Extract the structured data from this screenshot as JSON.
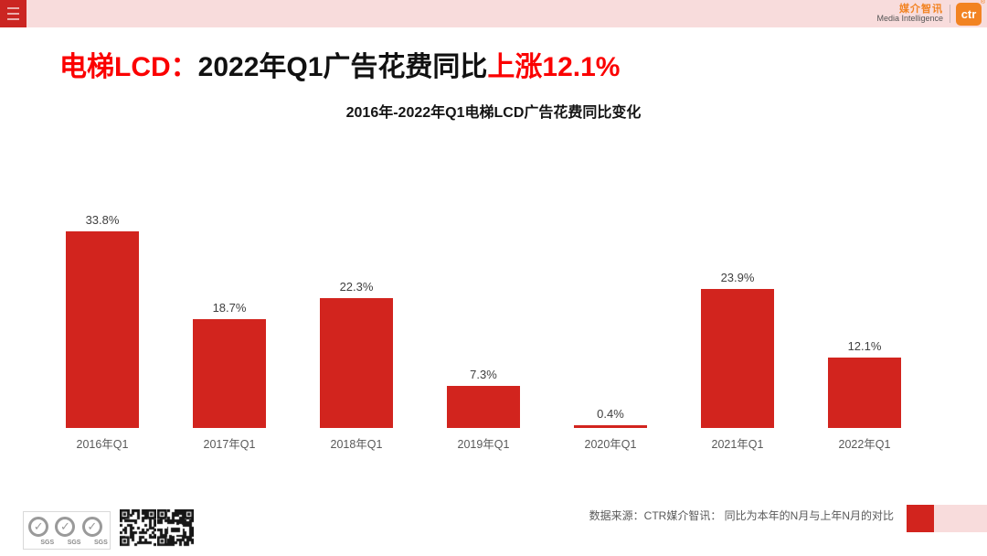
{
  "header": {
    "brand": {
      "name_cn": "媒介智讯",
      "name_en": "Media Intelligence",
      "logo_text": "ctr",
      "registered_mark": "®"
    }
  },
  "title": {
    "prefix": "电梯LCD：",
    "middle": "2022年Q1广告花费同比",
    "highlight": "上涨12.1%",
    "accent_color": "#FB0000"
  },
  "chart_data": {
    "type": "bar",
    "title": "2016年-2022年Q1电梯LCD广告花费同比变化",
    "categories": [
      "2016年Q1",
      "2017年Q1",
      "2018年Q1",
      "2019年Q1",
      "2020年Q1",
      "2021年Q1",
      "2022年Q1"
    ],
    "values": [
      33.8,
      18.7,
      22.3,
      7.3,
      0.4,
      23.9,
      12.1
    ],
    "value_labels": [
      "33.8%",
      "18.7%",
      "22.3%",
      "7.3%",
      "0.4%",
      "23.9%",
      "12.1%"
    ],
    "unit": "%",
    "bar_color": "#D2241E",
    "ylim": [
      0,
      35
    ],
    "grid": false,
    "legend": false,
    "xlabel": "",
    "ylabel": ""
  },
  "footer": {
    "source_text": "数据来源：CTR媒介智讯：  同比为本年的N月与上年N月的对比",
    "sgs_label": "SGS",
    "accent_square_dark": "#D2241E",
    "accent_square_light": "#F8DCDC"
  }
}
